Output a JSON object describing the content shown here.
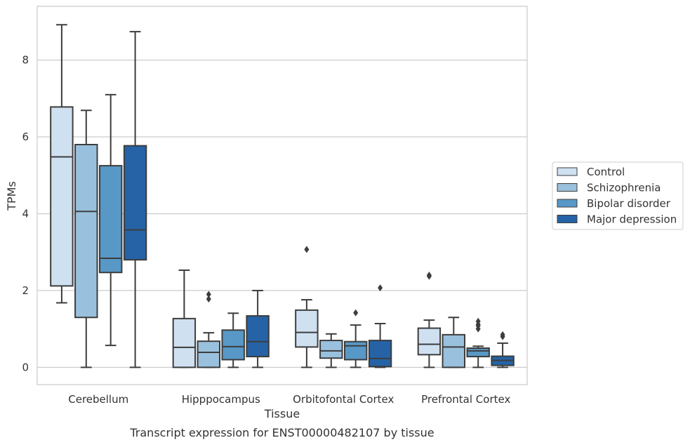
{
  "chart_data": {
    "type": "box",
    "caption": "Transcript expression for ENST00000482107 by tissue",
    "xlabel": "Tissue",
    "ylabel": "TPMs",
    "ylim": [
      -0.45,
      9.4
    ],
    "yticks": [
      0,
      2,
      4,
      6,
      8
    ],
    "grid": "horizontal",
    "legend_placement": "right",
    "categories": [
      "Cerebellum",
      "Hipppocampus",
      "Orbitofontal Cortex",
      "Prefrontal Cortex"
    ],
    "series": [
      {
        "name": "Control",
        "color": "#cfe0f1",
        "boxes": [
          {
            "whislo": 1.68,
            "q1": 2.12,
            "med": 5.48,
            "q3": 6.78,
            "whishi": 8.92,
            "fliers": []
          },
          {
            "whislo": 0.0,
            "q1": 0.0,
            "med": 0.52,
            "q3": 1.27,
            "whishi": 2.53,
            "fliers": []
          },
          {
            "whislo": 0.0,
            "q1": 0.53,
            "med": 0.91,
            "q3": 1.49,
            "whishi": 1.76,
            "fliers": [
              3.07
            ]
          },
          {
            "whislo": 0.0,
            "q1": 0.33,
            "med": 0.6,
            "q3": 1.02,
            "whishi": 1.23,
            "fliers": [
              2.37,
              2.4
            ]
          }
        ]
      },
      {
        "name": "Schizophrenia",
        "color": "#99c1de",
        "boxes": [
          {
            "whislo": 0.0,
            "q1": 1.3,
            "med": 4.06,
            "q3": 5.8,
            "whishi": 6.69,
            "fliers": []
          },
          {
            "whislo": 0.0,
            "q1": 0.0,
            "med": 0.39,
            "q3": 0.68,
            "whishi": 0.9,
            "fliers": [
              1.78,
              1.9
            ]
          },
          {
            "whislo": 0.0,
            "q1": 0.24,
            "med": 0.43,
            "q3": 0.7,
            "whishi": 0.87,
            "fliers": []
          },
          {
            "whislo": 0.0,
            "q1": 0.0,
            "med": 0.53,
            "q3": 0.85,
            "whishi": 1.3,
            "fliers": []
          }
        ]
      },
      {
        "name": "Bipolar disorder",
        "color": "#5898c6",
        "boxes": [
          {
            "whislo": 0.57,
            "q1": 2.47,
            "med": 2.84,
            "q3": 5.25,
            "whishi": 7.1,
            "fliers": []
          },
          {
            "whislo": 0.0,
            "q1": 0.2,
            "med": 0.54,
            "q3": 0.97,
            "whishi": 1.41,
            "fliers": []
          },
          {
            "whislo": 0.0,
            "q1": 0.2,
            "med": 0.56,
            "q3": 0.67,
            "whishi": 1.1,
            "fliers": [
              1.42
            ]
          },
          {
            "whislo": 0.0,
            "q1": 0.28,
            "med": 0.43,
            "q3": 0.5,
            "whishi": 0.55,
            "fliers": [
              1.0,
              1.08,
              1.12,
              1.2
            ]
          }
        ]
      },
      {
        "name": "Major depression",
        "color": "#2563a6",
        "boxes": [
          {
            "whislo": 0.0,
            "q1": 2.8,
            "med": 3.58,
            "q3": 5.77,
            "whishi": 8.74,
            "fliers": []
          },
          {
            "whislo": 0.0,
            "q1": 0.28,
            "med": 0.67,
            "q3": 1.34,
            "whishi": 2.0,
            "fliers": []
          },
          {
            "whislo": 0.0,
            "q1": 0.02,
            "med": 0.23,
            "q3": 0.7,
            "whishi": 1.14,
            "fliers": [
              2.07
            ]
          },
          {
            "whislo": 0.0,
            "q1": 0.05,
            "med": 0.18,
            "q3": 0.29,
            "whishi": 0.63,
            "fliers": [
              0.8,
              0.85
            ]
          }
        ]
      }
    ]
  }
}
